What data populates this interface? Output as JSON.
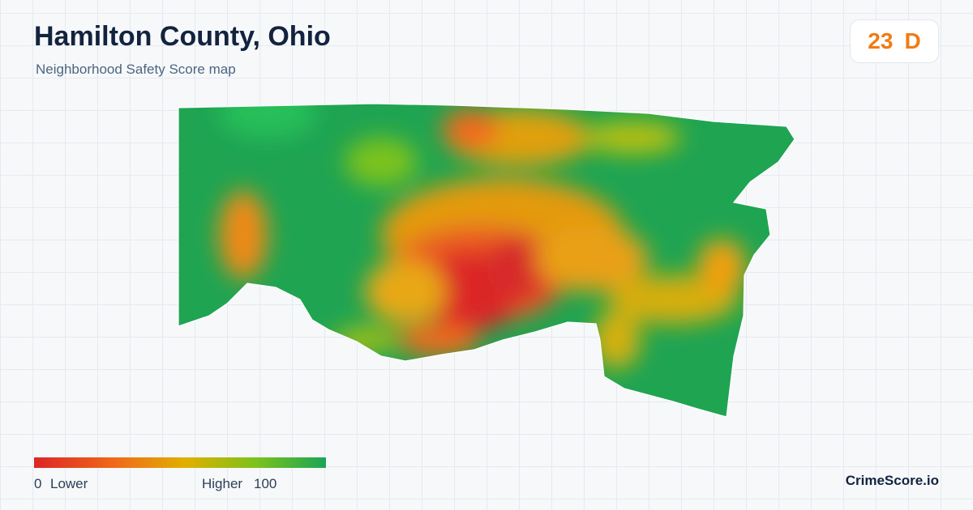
{
  "header": {
    "title": "Hamilton County, Ohio",
    "subtitle": "Neighborhood Safety Score map"
  },
  "score": {
    "value": 23,
    "grade": "D"
  },
  "legend": {
    "min": 0,
    "min_label": "Lower",
    "max_label": "Higher",
    "max": 100
  },
  "footer": {
    "brand": "CrimeScore.io"
  }
}
